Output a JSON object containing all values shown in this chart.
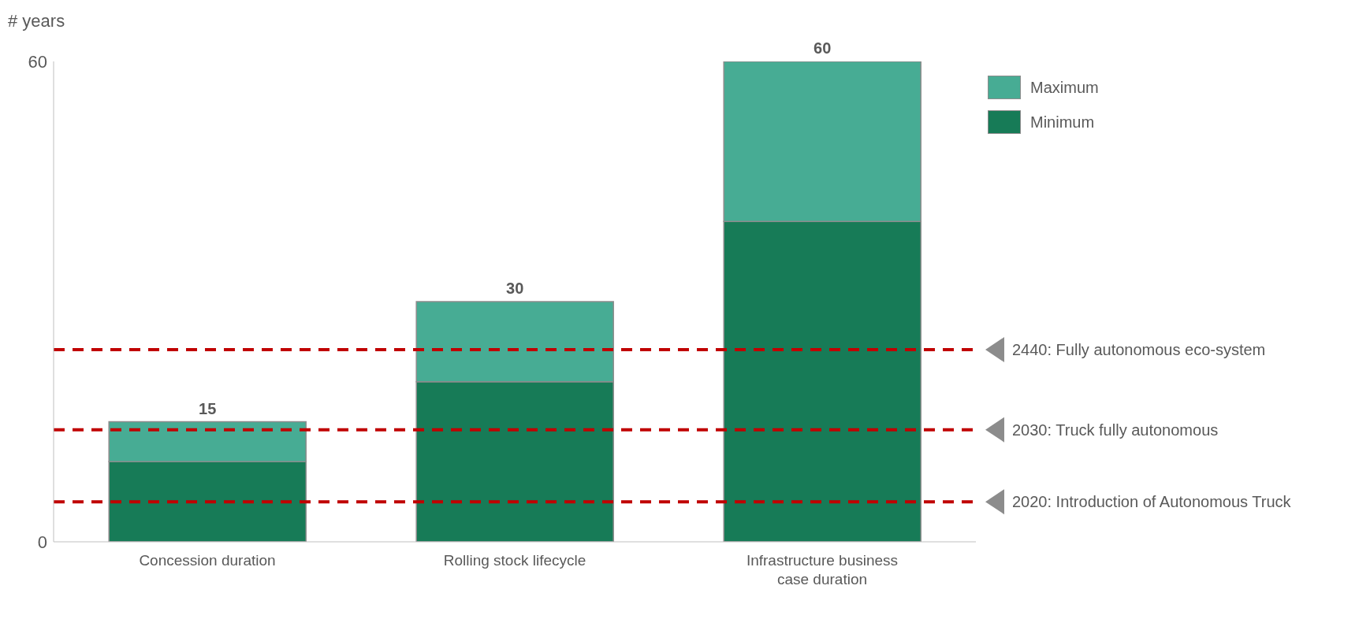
{
  "chart_data": {
    "type": "bar",
    "stacked": true,
    "ylabel": "# years",
    "categories": [
      "Concession duration",
      "Rolling stock lifecycle",
      "Infrastructure business case duration"
    ],
    "series": [
      {
        "name": "Minimum",
        "color": "#177b57",
        "values": [
          10,
          20,
          40
        ]
      },
      {
        "name": "Maximum",
        "color": "#47ac94",
        "values": [
          5,
          10,
          20
        ]
      }
    ],
    "totals": [
      "15",
      "30",
      "60"
    ],
    "ylim": [
      0,
      60
    ],
    "yticks": [
      0,
      60
    ],
    "grid": false,
    "legend": "top right",
    "ref_lines": [
      {
        "axis": "y",
        "value": 24,
        "label": "2440: Fully autonomous eco-system",
        "color": "#c00000",
        "line_style": "dashed"
      },
      {
        "axis": "y",
        "value": 14,
        "label": "2030: Truck fully autonomous",
        "color": "#c00000",
        "line_style": "dashed"
      },
      {
        "axis": "y",
        "value": 5,
        "label": "2020: Introduction of Autonomous Truck",
        "color": "#c00000",
        "line_style": "dashed"
      }
    ]
  }
}
